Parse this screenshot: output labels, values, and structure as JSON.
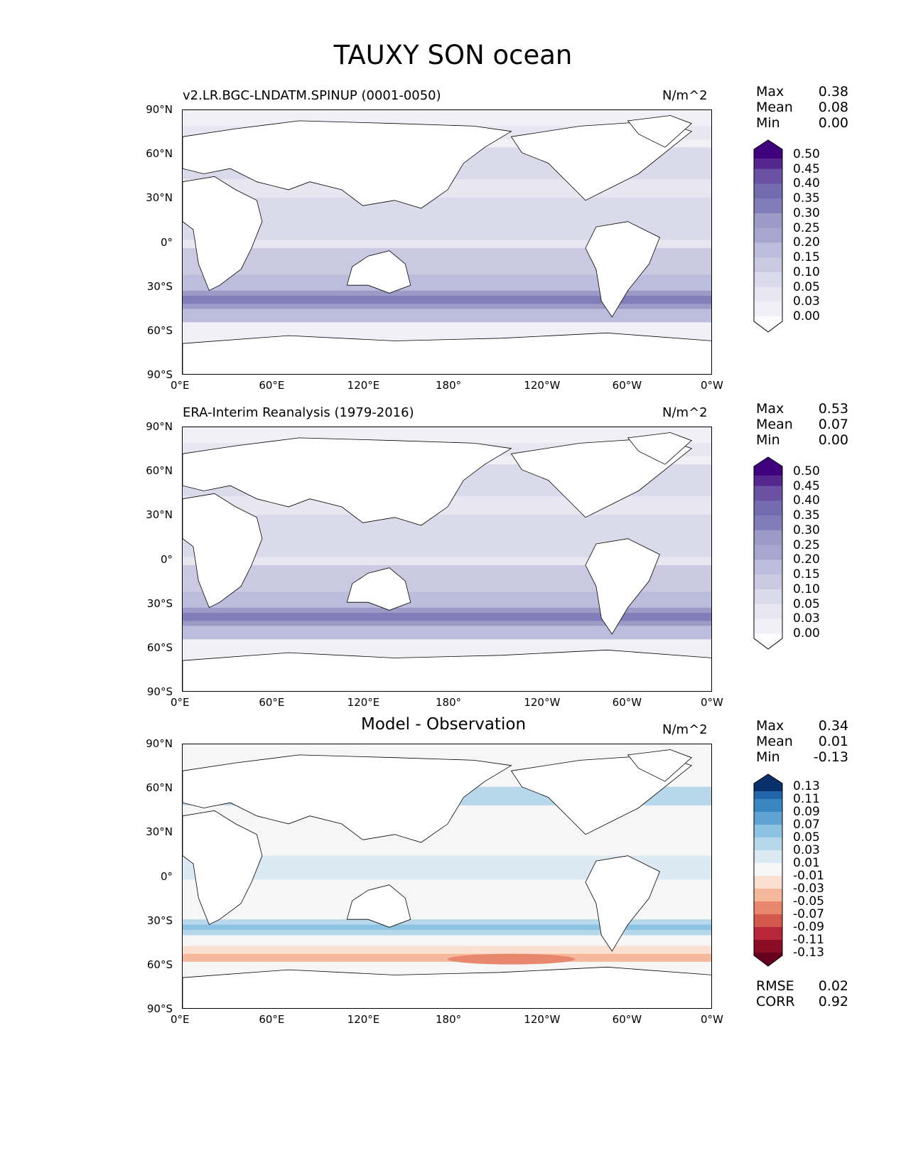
{
  "title": "TAUXY SON ocean",
  "x_ticks": [
    "0°E",
    "60°E",
    "120°E",
    "180°",
    "120°W",
    "60°W",
    "0°W"
  ],
  "y_ticks": [
    "90°N",
    "60°N",
    "30°N",
    "0°",
    "30°S",
    "60°S",
    "90°S"
  ],
  "panels": [
    {
      "label": "v2.LR.BGC-LNDATM.SPINUP (0001-0050)",
      "units": "N/m^2",
      "stats": {
        "max_label": "Max",
        "max": "0.38",
        "mean_label": "Mean",
        "mean": "0.08",
        "min_label": "Min",
        "min": "0.00"
      },
      "colorbar": {
        "levels": [
          "0.50",
          "0.45",
          "0.40",
          "0.35",
          "0.30",
          "0.25",
          "0.20",
          "0.15",
          "0.10",
          "0.05",
          "0.03",
          "0.00"
        ],
        "colors": [
          "#3f007d",
          "#54278f",
          "#6a51a3",
          "#756bb1",
          "#807dba",
          "#9e9ac8",
          "#a8a6cf",
          "#bcbddc",
          "#cbc9e2",
          "#dadaeb",
          "#e7e6f1",
          "#f2f0f7",
          "#fcfbfd"
        ],
        "over": "#3f007d",
        "under": "#ffffff"
      }
    },
    {
      "label": "ERA-Interim Reanalysis (1979-2016)",
      "units": "N/m^2",
      "stats": {
        "max_label": "Max",
        "max": "0.53",
        "mean_label": "Mean",
        "mean": "0.07",
        "min_label": "Min",
        "min": "0.00"
      },
      "colorbar": {
        "levels": [
          "0.50",
          "0.45",
          "0.40",
          "0.35",
          "0.30",
          "0.25",
          "0.20",
          "0.15",
          "0.10",
          "0.05",
          "0.03",
          "0.00"
        ],
        "colors": [
          "#3f007d",
          "#54278f",
          "#6a51a3",
          "#756bb1",
          "#807dba",
          "#9e9ac8",
          "#a8a6cf",
          "#bcbddc",
          "#cbc9e2",
          "#dadaeb",
          "#e7e6f1",
          "#f2f0f7",
          "#fcfbfd"
        ],
        "over": "#3f007d",
        "under": "#ffffff"
      }
    },
    {
      "label": "Model - Observation",
      "units": "N/m^2",
      "stats": {
        "max_label": "Max",
        "max": "0.34",
        "mean_label": "Mean",
        "mean": "0.01",
        "min_label": "Min",
        "min": "-0.13"
      },
      "colorbar": {
        "levels": [
          "0.13",
          "0.11",
          "0.09",
          "0.07",
          "0.05",
          "0.03",
          "0.01",
          "-0.01",
          "-0.03",
          "-0.05",
          "-0.07",
          "-0.09",
          "-0.11",
          "-0.13"
        ],
        "colors": [
          "#08306b",
          "#2166ac",
          "#3a86c0",
          "#5fa3d2",
          "#8dc3e2",
          "#b7d8eb",
          "#dbe9f3",
          "#f6f6f6",
          "#fbe0d2",
          "#f6b89b",
          "#e8876c",
          "#d4574e",
          "#b8263a",
          "#8a0c25",
          "#67001f"
        ],
        "over": "#053061",
        "under": "#67001f"
      },
      "rmse_label": "RMSE",
      "rmse": "0.02",
      "corr_label": "CORR",
      "corr": "0.92"
    }
  ]
}
